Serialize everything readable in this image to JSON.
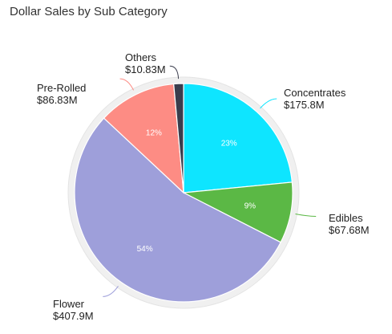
{
  "chart_data": {
    "type": "pie",
    "title": "Dollar Sales by Sub Category",
    "slices": [
      {
        "name": "Concentrates",
        "value_label": "$175.8M",
        "value": 175.8,
        "percent_label": "23%",
        "color": "#0ee5ff"
      },
      {
        "name": "Edibles",
        "value_label": "$67.68M",
        "value": 67.68,
        "percent_label": "9%",
        "color": "#5bb845"
      },
      {
        "name": "Flower",
        "value_label": "$407.9M",
        "value": 407.9,
        "percent_label": "54%",
        "color": "#9e9fda"
      },
      {
        "name": "Pre-Rolled",
        "value_label": "$86.83M",
        "value": 86.83,
        "percent_label": "12%",
        "color": "#fd8c84"
      },
      {
        "name": "Others",
        "value_label": "$10.83M",
        "value": 10.83,
        "percent_label": "",
        "color": "#3a3d4d"
      }
    ]
  }
}
